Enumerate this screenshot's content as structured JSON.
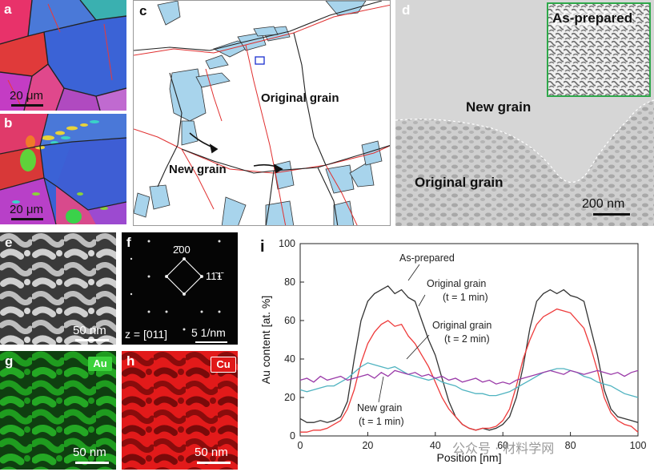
{
  "panels": {
    "a": {
      "label": "a",
      "scale": "20 μm"
    },
    "b": {
      "label": "b",
      "scale": "20 μm"
    },
    "c": {
      "label": "c",
      "original_grain": "Original grain",
      "new_grain": "New grain"
    },
    "d": {
      "label": "d",
      "inset": "As-prepared",
      "new_grain": "New grain",
      "original_grain": "Original grain",
      "scale": "200 nm"
    },
    "e": {
      "label": "e",
      "scale": "50 nm"
    },
    "f": {
      "label": "f",
      "spot1": "2̄00",
      "spot2": "11̄1̄",
      "zone": "z = [011]",
      "scale": "5 1/nm"
    },
    "g": {
      "label": "g",
      "element": "Au",
      "scale": "50 nm",
      "color": "#1fa81f"
    },
    "h": {
      "label": "h",
      "element": "Cu",
      "scale": "50 nm",
      "color": "#e81818"
    },
    "i": {
      "label": "i"
    }
  },
  "watermark": "公众号 · 材料学网",
  "chart_data": {
    "type": "line",
    "xlabel": "Position [nm]",
    "ylabel": "Au content [at. %]",
    "xlim": [
      0,
      100
    ],
    "ylim": [
      0,
      100
    ],
    "xticks": [
      0,
      20,
      40,
      60,
      80,
      100
    ],
    "yticks": [
      0,
      20,
      40,
      60,
      80,
      100
    ],
    "annotations": {
      "as_prepared": "As-prepared",
      "orig1_a": "Original grain",
      "orig1_b": "(t = 1 min)",
      "orig2_a": "Original grain",
      "orig2_b": "(t = 2 min)",
      "new_a": "New grain",
      "new_b": "(t = 1 min)"
    },
    "series": [
      {
        "key": "as_prepared",
        "color": "#333333",
        "x": [
          0,
          2,
          4,
          6,
          8,
          10,
          12,
          14,
          16,
          18,
          20,
          22,
          24,
          26,
          28,
          30,
          32,
          34,
          36,
          38,
          40,
          42,
          44,
          46,
          48,
          50,
          52,
          54,
          56,
          58,
          60,
          62,
          64,
          66,
          68,
          70,
          72,
          74,
          76,
          78,
          80,
          82,
          84,
          86,
          88,
          90,
          92,
          94,
          96,
          98,
          100
        ],
        "y": [
          9,
          7,
          7,
          8,
          7,
          8,
          10,
          18,
          40,
          60,
          70,
          74,
          76,
          78,
          74,
          76,
          72,
          70,
          60,
          50,
          42,
          30,
          18,
          10,
          6,
          4,
          3,
          4,
          3,
          4,
          6,
          10,
          20,
          36,
          56,
          70,
          74,
          76,
          74,
          76,
          73,
          72,
          70,
          56,
          42,
          24,
          14,
          10,
          9,
          8,
          7
        ]
      },
      {
        "key": "orig1",
        "color": "#ee3a3a",
        "x": [
          0,
          2,
          4,
          6,
          8,
          10,
          12,
          14,
          16,
          18,
          20,
          22,
          24,
          26,
          28,
          30,
          32,
          34,
          36,
          38,
          40,
          42,
          44,
          46,
          48,
          50,
          52,
          54,
          56,
          58,
          60,
          62,
          64,
          66,
          68,
          70,
          72,
          74,
          76,
          78,
          80,
          82,
          84,
          86,
          88,
          90,
          92,
          94,
          96,
          98,
          100
        ],
        "y": [
          2,
          2,
          3,
          3,
          4,
          6,
          8,
          14,
          24,
          38,
          48,
          54,
          58,
          60,
          57,
          58,
          52,
          48,
          42,
          36,
          28,
          20,
          14,
          10,
          6,
          4,
          3,
          4,
          4,
          5,
          8,
          14,
          26,
          40,
          50,
          58,
          62,
          64,
          66,
          65,
          64,
          60,
          56,
          46,
          34,
          20,
          12,
          8,
          6,
          5,
          2
        ]
      },
      {
        "key": "orig2",
        "color": "#4fb3c0",
        "x": [
          0,
          2,
          4,
          6,
          8,
          10,
          12,
          14,
          16,
          18,
          20,
          22,
          24,
          26,
          28,
          30,
          32,
          34,
          36,
          38,
          40,
          42,
          44,
          46,
          48,
          50,
          52,
          54,
          56,
          58,
          60,
          62,
          64,
          66,
          68,
          70,
          72,
          74,
          76,
          78,
          80,
          82,
          84,
          86,
          88,
          90,
          92,
          94,
          96,
          98,
          100
        ],
        "y": [
          24,
          23,
          24,
          25,
          26,
          26,
          28,
          30,
          33,
          36,
          38,
          37,
          36,
          35,
          36,
          34,
          32,
          31,
          30,
          29,
          30,
          28,
          27,
          26,
          24,
          23,
          22,
          22,
          21,
          21,
          22,
          23,
          25,
          27,
          29,
          31,
          33,
          34,
          35,
          35,
          34,
          33,
          31,
          30,
          28,
          27,
          26,
          24,
          22,
          21,
          20
        ]
      },
      {
        "key": "new",
        "color": "#9a3aa8",
        "x": [
          0,
          2,
          4,
          6,
          8,
          10,
          12,
          14,
          16,
          18,
          20,
          22,
          24,
          26,
          28,
          30,
          32,
          34,
          36,
          38,
          40,
          42,
          44,
          46,
          48,
          50,
          52,
          54,
          56,
          58,
          60,
          62,
          64,
          66,
          68,
          70,
          72,
          74,
          76,
          78,
          80,
          82,
          84,
          86,
          88,
          90,
          92,
          94,
          96,
          98,
          100
        ],
        "y": [
          29,
          30,
          28,
          31,
          29,
          30,
          31,
          29,
          30,
          31,
          32,
          30,
          33,
          31,
          34,
          33,
          32,
          33,
          31,
          32,
          30,
          31,
          29,
          30,
          28,
          29,
          30,
          28,
          29,
          27,
          28,
          27,
          29,
          30,
          31,
          32,
          33,
          34,
          33,
          32,
          34,
          33,
          32,
          33,
          34,
          33,
          32,
          33,
          31,
          33,
          34
        ]
      }
    ]
  }
}
